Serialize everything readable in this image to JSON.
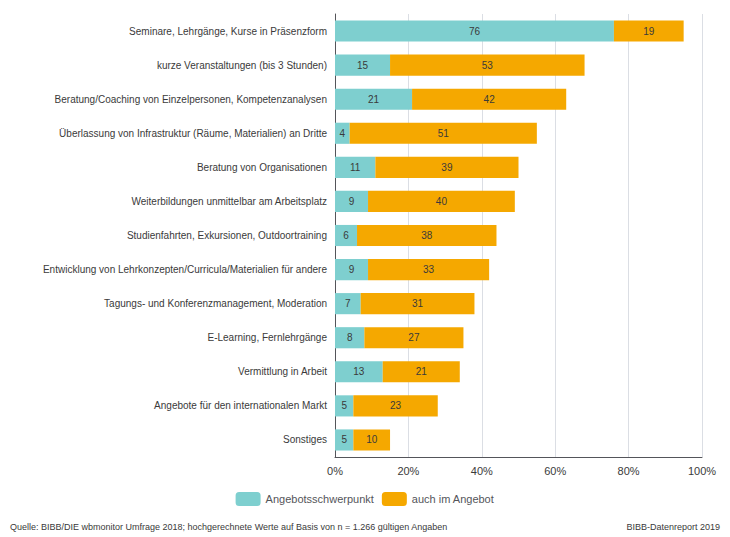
{
  "chart_data": {
    "type": "bar",
    "orientation": "horizontal",
    "stacked": true,
    "data_labels": true,
    "grid": true,
    "legend": "bottom",
    "categories": [
      "Seminare, Lehrgänge, Kurse in Präsenzform",
      "kurze Veranstaltungen (bis 3 Stunden)",
      "Beratung/Coaching von Einzelpersonen, Kompetenzanalysen",
      "Überlassung von Infrastruktur (Räume, Materialien) an Dritte",
      "Beratung von Organisationen",
      "Weiterbildungen unmittelbar am Arbeitsplatz",
      "Studienfahrten, Exkursionen, Outdoortraining",
      "Entwicklung von Lehrkonzepten/Curricula/Materialien für andere",
      "Tagungs- und Konferenzmanagement, Moderation",
      "E-Learning, Fernlehrgänge",
      "Vermittlung in Arbeit",
      "Angebote für den internationalen Markt",
      "Sonstiges"
    ],
    "series": [
      {
        "name": "Angebotsschwerpunkt",
        "color": "#7ecfcf",
        "values": [
          76,
          15,
          21,
          4,
          11,
          9,
          6,
          9,
          7,
          8,
          13,
          5,
          5
        ]
      },
      {
        "name": "auch im Angebot",
        "color": "#f5a800",
        "values": [
          19,
          53,
          42,
          51,
          39,
          40,
          38,
          33,
          31,
          27,
          21,
          23,
          10
        ]
      }
    ],
    "xlim": [
      0,
      100
    ],
    "xticks": [
      {
        "value": 0,
        "label": "0%"
      },
      {
        "value": 20,
        "label": "20%"
      },
      {
        "value": 40,
        "label": "40%"
      },
      {
        "value": 60,
        "label": "60%"
      },
      {
        "value": 80,
        "label": "80%"
      },
      {
        "value": 100,
        "label": "100%"
      }
    ],
    "annotations": [
      "Quelle: BIBB/DIE wbmonitor Umfrage 2018; hochgerechnete Werte auf Basis von n = 1.266 gültigen Angaben",
      "BIBB-Datenreport 2019"
    ]
  }
}
